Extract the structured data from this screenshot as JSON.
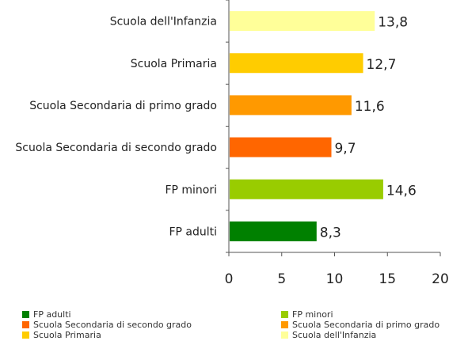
{
  "chart_data": {
    "type": "bar",
    "orientation": "horizontal",
    "categories": [
      "Scuola dell'Infanzia",
      "Scuola Primaria",
      "Scuola Secondaria di primo grado",
      "Scuola Secondaria di secondo grado",
      "FP  minori",
      "FP adulti"
    ],
    "values": [
      13.8,
      12.7,
      11.6,
      9.7,
      14.6,
      8.3
    ],
    "value_labels": [
      "13,8",
      "12,7",
      "11,6",
      "9,7",
      "14,6",
      "8,3"
    ],
    "colors": [
      "#ffff99",
      "#ffcc00",
      "#ff9900",
      "#ff6600",
      "#99cc00",
      "#008000"
    ],
    "xlim": [
      0,
      20
    ],
    "xticks": [
      0,
      5,
      10,
      15,
      20
    ],
    "xtick_labels": [
      "0",
      "5",
      "10",
      "15",
      "20"
    ],
    "grid": false,
    "legend_position": "bottom"
  },
  "legend": [
    {
      "label": "FP adulti",
      "color": "#008000"
    },
    {
      "label": "FP  minori",
      "color": "#99cc00"
    },
    {
      "label": "Scuola Secondaria di secondo grado",
      "color": "#ff6600"
    },
    {
      "label": "Scuola Secondaria di primo grado",
      "color": "#ff9900"
    },
    {
      "label": "Scuola Primaria",
      "color": "#ffcc00"
    },
    {
      "label": "Scuola dell'Infanzia",
      "color": "#ffff99"
    }
  ]
}
